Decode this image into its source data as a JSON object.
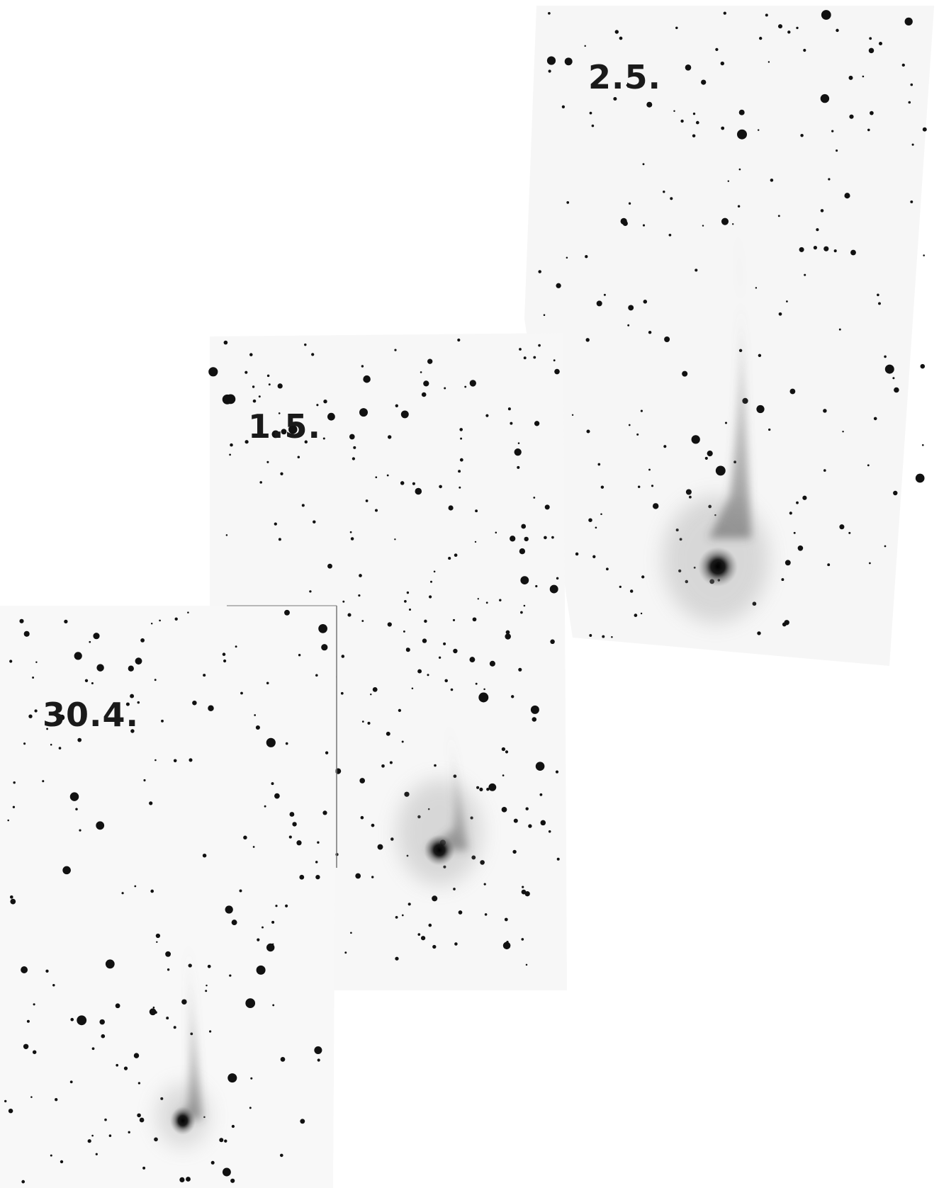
{
  "image": {
    "type": "photographic-plate-mosaic",
    "background": "#ffffff",
    "plate_tone": "#f7f7f7",
    "ink": "#111111",
    "panels": [
      {
        "id": "panel-2-5",
        "date_label": "2.5."
      },
      {
        "id": "panel-1-5",
        "date_label": "1.5."
      },
      {
        "id": "panel-30-4",
        "date_label": "30.4."
      }
    ]
  }
}
